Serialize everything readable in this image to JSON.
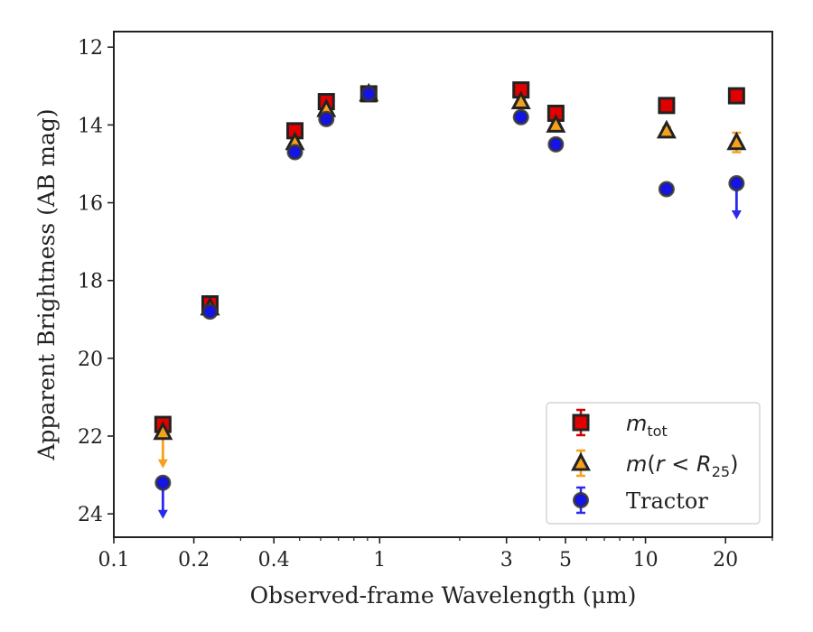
{
  "chart_data": {
    "type": "scatter",
    "xlabel": "Observed-frame Wavelength (μm)",
    "ylabel": "Apparent Brightness (AB mag)",
    "xscale": "log",
    "xlim": [
      0.1,
      30
    ],
    "ylim": [
      24.6,
      11.6
    ],
    "y_inverted": true,
    "x_ticks": [
      {
        "value": 0.1,
        "label": "0.1"
      },
      {
        "value": 0.2,
        "label": "0.2"
      },
      {
        "value": 0.4,
        "label": "0.4"
      },
      {
        "value": 1,
        "label": "1"
      },
      {
        "value": 3,
        "label": "3"
      },
      {
        "value": 5,
        "label": "5"
      },
      {
        "value": 10,
        "label": "10"
      },
      {
        "value": 20,
        "label": "20"
      }
    ],
    "x_minor_ticks": [
      0.3,
      0.5,
      0.6,
      0.7,
      0.8,
      0.9,
      2,
      4,
      6,
      7,
      8,
      9,
      30
    ],
    "y_ticks": [
      {
        "value": 12,
        "label": "12"
      },
      {
        "value": 14,
        "label": "14"
      },
      {
        "value": 16,
        "label": "16"
      },
      {
        "value": 18,
        "label": "18"
      },
      {
        "value": 20,
        "label": "20"
      },
      {
        "value": 22,
        "label": "22"
      },
      {
        "value": 24,
        "label": "24"
      }
    ],
    "grid": false,
    "legend_position": "bottom-right",
    "series": [
      {
        "name": "m_tot",
        "marker": "square",
        "color": "#e00000",
        "errcolor": "#d40000",
        "points": [
          {
            "x": 0.153,
            "y": 21.7,
            "err": 0.1
          },
          {
            "x": 0.23,
            "y": 18.6,
            "err": 0.1
          },
          {
            "x": 0.48,
            "y": 14.15,
            "err": 0.05
          },
          {
            "x": 0.63,
            "y": 13.4,
            "err": 0.05
          },
          {
            "x": 0.91,
            "y": 13.2,
            "err": 0.05
          },
          {
            "x": 3.4,
            "y": 13.1,
            "err": 0.05
          },
          {
            "x": 4.6,
            "y": 13.7,
            "err": 0.05
          },
          {
            "x": 12.0,
            "y": 13.5,
            "err": 0.05
          },
          {
            "x": 22.0,
            "y": 13.25,
            "err": 0.05
          }
        ]
      },
      {
        "name": "m(r < R25)",
        "marker": "triangle",
        "color": "#f5a11b",
        "errcolor": "#f5a11b",
        "points": [
          {
            "x": 0.153,
            "y": 21.9,
            "err": 0.1,
            "limit": true
          },
          {
            "x": 0.23,
            "y": 18.7,
            "err": 0.1
          },
          {
            "x": 0.48,
            "y": 14.45,
            "err": 0.05
          },
          {
            "x": 0.63,
            "y": 13.6,
            "err": 0.05
          },
          {
            "x": 0.91,
            "y": 13.2,
            "err": 0.05
          },
          {
            "x": 3.4,
            "y": 13.4,
            "err": 0.05
          },
          {
            "x": 4.6,
            "y": 14.0,
            "err": 0.05
          },
          {
            "x": 12.0,
            "y": 14.15,
            "err": 0.05
          },
          {
            "x": 22.0,
            "y": 14.45,
            "err": 0.25
          }
        ]
      },
      {
        "name": "Tractor",
        "marker": "circle",
        "color": "#1414e6",
        "errcolor": "#2a2aee",
        "points": [
          {
            "x": 0.153,
            "y": 23.2,
            "err": 0.1,
            "limit": true
          },
          {
            "x": 0.23,
            "y": 18.8,
            "err": 0.1
          },
          {
            "x": 0.48,
            "y": 14.7,
            "err": 0.05
          },
          {
            "x": 0.63,
            "y": 13.85,
            "err": 0.05
          },
          {
            "x": 0.91,
            "y": 13.2,
            "err": 0.05
          },
          {
            "x": 3.4,
            "y": 13.8,
            "err": 0.05
          },
          {
            "x": 4.6,
            "y": 14.5,
            "err": 0.05
          },
          {
            "x": 12.0,
            "y": 15.65,
            "err": 0.05
          },
          {
            "x": 22.0,
            "y": 15.5,
            "err": 0.05,
            "limit": true
          }
        ]
      }
    ],
    "legend": [
      {
        "series": "m_tot",
        "italic": "m",
        "sub": "tot",
        "after": ""
      },
      {
        "series": "m(r < R25)",
        "italic": "m",
        "text_pre": "(",
        "italic2": "r",
        "text_mid": " < ",
        "italic3": "R",
        "sub": "25",
        "after": ")"
      },
      {
        "series": "Tractor",
        "plain": "Tractor"
      }
    ]
  }
}
